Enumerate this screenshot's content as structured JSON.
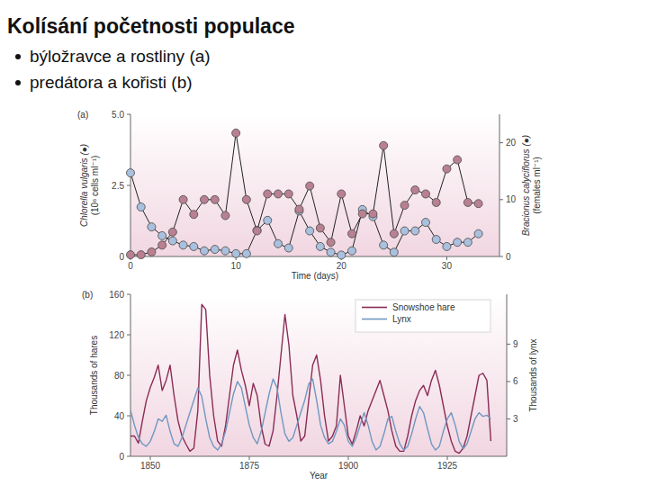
{
  "title": "Kolísání početnosti populace",
  "bullets": [
    "býložravce a rostliny (a)",
    "predátora a kořisti (b)"
  ],
  "chart_data": [
    {
      "type": "line",
      "annotations": [
        "(a)"
      ],
      "xlabel": "Time (days)",
      "ylabel": [
        "Chlorella vulgaris (●)",
        "(10⁶ cells ml⁻¹)"
      ],
      "y2label": [
        "Bracionus calyciflorus (●)",
        "(females ml⁻¹)"
      ],
      "x": [
        0,
        1,
        2,
        3,
        4,
        5,
        6,
        7,
        8,
        9,
        10,
        11,
        12,
        13,
        14,
        15,
        16,
        17,
        18,
        19,
        20,
        21,
        22,
        23,
        24,
        25,
        26,
        27,
        28,
        29,
        30,
        31,
        32,
        33
      ],
      "xlim": [
        0,
        35
      ],
      "xticks": [
        0,
        10,
        20,
        30
      ],
      "ylim": [
        0,
        5
      ],
      "yticks": [
        0,
        2.5,
        {
          "value": 5,
          "label": "5.0"
        }
      ],
      "y2lim": [
        0,
        25
      ],
      "y2ticks": [
        0,
        10,
        20
      ],
      "series": [
        {
          "color": "#a9c0de",
          "marker": "circle",
          "values": [
            2.94,
            1.74,
            1.04,
            0.73,
            0.55,
            0.4,
            0.35,
            0.2,
            0.25,
            0.2,
            0.1,
            0.1,
            0.92,
            1.27,
            0.45,
            0.3,
            1.6,
            0.9,
            0.35,
            0.15,
            0.05,
            0.2,
            1.65,
            1.4,
            0.4,
            0.15,
            0.9,
            0.9,
            1.2,
            0.6,
            0.35,
            0.5,
            0.5,
            0.8
          ]
        },
        {
          "color": "#b98092",
          "marker": "circle",
          "axis": "y2",
          "values": [
            0.3,
            0.3,
            0.8,
            2,
            4.3,
            10,
            7.4,
            10,
            10,
            7.2,
            21.7,
            10,
            4.5,
            11,
            11,
            11,
            8.3,
            12.4,
            5,
            2.5,
            11,
            4,
            7.5,
            7.5,
            19.5,
            4,
            9,
            11.7,
            11,
            9.5,
            15.4,
            17,
            9.5,
            9.3
          ]
        }
      ]
    },
    {
      "type": "line",
      "annotations": [
        "(b)"
      ],
      "xlabel": "Year",
      "ylabel": "Thousands of hares",
      "y2label": "Thousands of lynx",
      "legend": "upper right",
      "x": [
        1845,
        1846,
        1847,
        1848,
        1849,
        1850,
        1851,
        1852,
        1853,
        1854,
        1855,
        1856,
        1857,
        1858,
        1859,
        1860,
        1861,
        1862,
        1863,
        1864,
        1865,
        1866,
        1867,
        1868,
        1869,
        1870,
        1871,
        1872,
        1873,
        1874,
        1875,
        1876,
        1877,
        1878,
        1879,
        1880,
        1881,
        1882,
        1883,
        1884,
        1885,
        1886,
        1887,
        1888,
        1889,
        1890,
        1891,
        1892,
        1893,
        1894,
        1895,
        1896,
        1897,
        1898,
        1899,
        1900,
        1901,
        1902,
        1903,
        1904,
        1905,
        1906,
        1907,
        1908,
        1909,
        1910,
        1911,
        1912,
        1913,
        1914,
        1915,
        1916,
        1917,
        1918,
        1919,
        1920,
        1921,
        1922,
        1923,
        1924,
        1925,
        1926,
        1927,
        1928,
        1929,
        1930,
        1931,
        1932,
        1933,
        1934,
        1935,
        1936
      ],
      "xlim": [
        1845,
        1940
      ],
      "xticks": [
        1850,
        1875,
        1900,
        1925
      ],
      "ylim": [
        0,
        160
      ],
      "yticks": [
        0,
        40,
        80,
        120,
        160
      ],
      "y2lim": [
        0,
        13
      ],
      "y2ticks": [
        3,
        6,
        9
      ],
      "series": [
        {
          "name": "Snowshoe hare",
          "color": "#8a2c55",
          "line_style": "solid",
          "values": [
            20,
            20,
            13,
            35,
            55,
            68,
            78,
            90,
            65,
            75,
            90,
            60,
            35,
            20,
            12,
            5,
            8,
            45,
            150,
            145,
            80,
            40,
            15,
            10,
            30,
            60,
            90,
            105,
            85,
            70,
            50,
            72,
            60,
            30,
            12,
            10,
            25,
            60,
            100,
            140,
            110,
            60,
            40,
            15,
            20,
            55,
            90,
            100,
            75,
            40,
            15,
            20,
            30,
            80,
            50,
            20,
            12,
            25,
            40,
            30,
            45,
            55,
            65,
            75,
            60,
            45,
            25,
            10,
            5,
            5,
            20,
            40,
            55,
            65,
            70,
            60,
            75,
            85,
            70,
            50,
            30,
            15,
            5,
            3,
            8,
            20,
            40,
            60,
            80,
            82,
            75,
            15
          ]
        },
        {
          "name": "Lynx",
          "color": "#7097c2",
          "line_style": "solid",
          "axis": "y2",
          "values": [
            3.7,
            2.5,
            1.5,
            1,
            0.8,
            1.2,
            2,
            3,
            2.8,
            3.3,
            2,
            1,
            0.8,
            1.5,
            2.5,
            3.5,
            4.5,
            5.5,
            4.8,
            3,
            1.5,
            0.8,
            0.5,
            1,
            2,
            3.5,
            5,
            6,
            5.5,
            4,
            2.5,
            1.5,
            1,
            2,
            3.5,
            5,
            6.2,
            5.5,
            3.5,
            1.8,
            1.2,
            1.5,
            2.5,
            3.5,
            4.5,
            5.8,
            6.2,
            4.5,
            2.5,
            1.5,
            1,
            1.2,
            2,
            3,
            2.5,
            1.2,
            0.8,
            1.5,
            2.5,
            3.5,
            2.5,
            1.2,
            0.5,
            0.8,
            1.8,
            3,
            3.2,
            2,
            1,
            0.5,
            0.8,
            1.8,
            3,
            4,
            3.5,
            2.2,
            1,
            0.5,
            0.8,
            2,
            3,
            3.5,
            2.5,
            1.2,
            0.6,
            1,
            2,
            3,
            3.5,
            3.2,
            3.3,
            3
          ]
        }
      ]
    }
  ]
}
